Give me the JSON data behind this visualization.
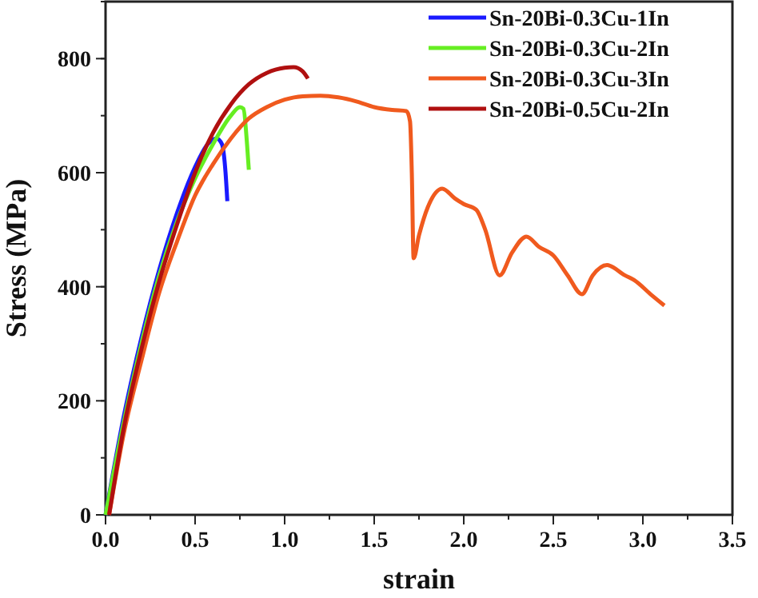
{
  "chart_data": {
    "type": "line",
    "xlabel": "strain",
    "ylabel": "Stress (MPa)",
    "xlim": [
      0,
      3.5
    ],
    "ylim": [
      0,
      900
    ],
    "xticks": [
      {
        "value": 0,
        "label": "0.0"
      },
      {
        "value": 0.5,
        "label": "0.5"
      },
      {
        "value": 1,
        "label": "1.0"
      },
      {
        "value": 1.5,
        "label": "1.5"
      },
      {
        "value": 2,
        "label": "2.0"
      },
      {
        "value": 2.5,
        "label": "2.5"
      },
      {
        "value": 3,
        "label": "3.0"
      },
      {
        "value": 3.5,
        "label": "3.5"
      }
    ],
    "yticks": [
      0,
      200,
      400,
      600,
      800
    ],
    "grid": false,
    "legend": "top right",
    "line_style": "solid",
    "marker": "none",
    "series": [
      {
        "name": "Sn-20Bi-0.3Cu-1In",
        "color": "#1a1aff",
        "x": [
          0,
          0.1,
          0.2,
          0.3,
          0.4,
          0.5,
          0.57,
          0.62,
          0.65,
          0.67,
          0.68
        ],
        "values": [
          0,
          170,
          310,
          430,
          530,
          610,
          650,
          660,
          650,
          600,
          550
        ]
      },
      {
        "name": "Sn-20Bi-0.3Cu-2In",
        "color": "#66ee22",
        "x": [
          0,
          0.1,
          0.2,
          0.3,
          0.4,
          0.5,
          0.6,
          0.7,
          0.75,
          0.77,
          0.79,
          0.8
        ],
        "values": [
          0,
          160,
          300,
          420,
          515,
          590,
          650,
          700,
          715,
          712,
          650,
          605
        ]
      },
      {
        "name": "Sn-20Bi-0.3Cu-3In",
        "color": "#f05a1e",
        "x": [
          0.02,
          0.1,
          0.2,
          0.3,
          0.4,
          0.5,
          0.6,
          0.7,
          0.8,
          0.9,
          1.0,
          1.1,
          1.2,
          1.3,
          1.4,
          1.5,
          1.6,
          1.68,
          1.7,
          1.71,
          1.72,
          1.75,
          1.8,
          1.88,
          1.95,
          2.0,
          2.07,
          2.12,
          2.2,
          2.27,
          2.35,
          2.42,
          2.5,
          2.58,
          2.66,
          2.72,
          2.8,
          2.9,
          2.95,
          3.05,
          3.12
        ],
        "values": [
          0,
          140,
          270,
          390,
          480,
          560,
          615,
          660,
          695,
          715,
          728,
          734,
          735,
          732,
          725,
          715,
          710,
          708,
          690,
          600,
          450,
          490,
          540,
          572,
          555,
          545,
          535,
          500,
          420,
          460,
          488,
          470,
          455,
          420,
          387,
          420,
          438,
          420,
          412,
          385,
          367
        ]
      },
      {
        "name": "Sn-20Bi-0.5Cu-2In",
        "color": "#b01010",
        "x": [
          0.02,
          0.1,
          0.2,
          0.3,
          0.4,
          0.5,
          0.6,
          0.7,
          0.8,
          0.9,
          1.0,
          1.05,
          1.1,
          1.13
        ],
        "values": [
          0,
          150,
          290,
          410,
          510,
          600,
          670,
          720,
          755,
          775,
          784,
          785,
          778,
          765
        ]
      }
    ]
  }
}
